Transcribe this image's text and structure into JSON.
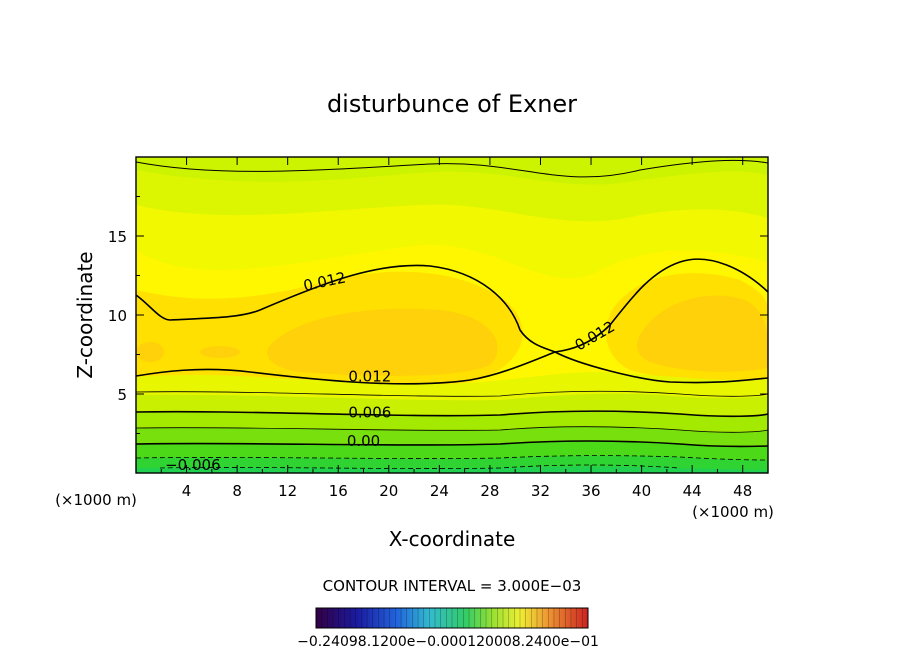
{
  "chart_data": {
    "type": "contour",
    "title": "disturbunce of Exner",
    "xlabel": "X-coordinate",
    "ylabel": "Z-coordinate",
    "x_unit_left": "(×1000 m)",
    "x_unit_right": "(×1000 m)",
    "xlim": [
      0,
      50
    ],
    "ylim": [
      0,
      20
    ],
    "xticks": [
      4,
      8,
      12,
      16,
      20,
      24,
      28,
      32,
      36,
      40,
      44,
      48
    ],
    "yticks": [
      5,
      10,
      15
    ],
    "contour_interval_text": "CONTOUR INTERVAL = 3.000E−03",
    "colorbar_labels": [
      "−0.240",
      "0e−01",
      "8.1",
      "0.0",
      "00e−01",
      "0.0012",
      "0.000",
      "2.4",
      "0.2",
      "00e−01"
    ],
    "colorbar_text": "−0.24098.1200e−0.000120008.2400e−01",
    "contour_labels": [
      {
        "text": "0.012",
        "x": 15,
        "y": 11.8,
        "angle": -12
      },
      {
        "text": "0.012",
        "x": 18.5,
        "y": 5.8,
        "angle": 0
      },
      {
        "text": "0.012",
        "x": 36.5,
        "y": 8.4,
        "angle": -30
      },
      {
        "text": "0.006",
        "x": 18.5,
        "y": 3.5,
        "angle": 0
      },
      {
        "text": "0.00",
        "x": 18,
        "y": 1.7,
        "angle": 0
      },
      {
        "text": "−0.006",
        "x": 4.5,
        "y": 0.2,
        "angle": 0
      }
    ],
    "fill_bands": [
      {
        "level": 0.012,
        "color": "#ffe200"
      },
      {
        "level": 0.009,
        "color": "#fff700"
      },
      {
        "level": 0.006,
        "color": "#dcf500"
      },
      {
        "level": 0.003,
        "color": "#b4ee00"
      },
      {
        "level": 0.0,
        "color": "#7ae40a"
      },
      {
        "level": -0.003,
        "color": "#3ad81c"
      },
      {
        "level": -0.006,
        "color": "#22d44a"
      }
    ],
    "colors": {
      "core": "#ffd60a",
      "upper": "#d9f500",
      "axis": "#000000"
    }
  }
}
